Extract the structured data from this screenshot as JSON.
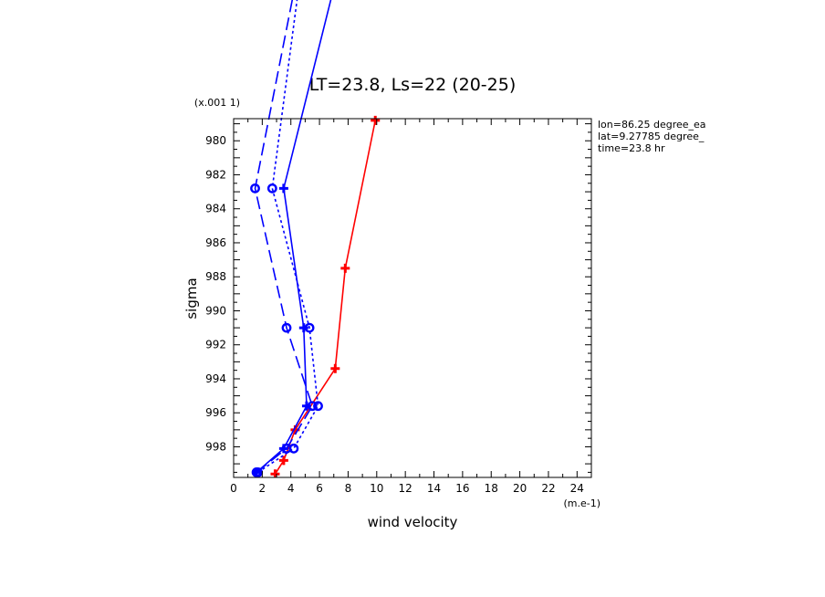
{
  "chart_data": {
    "type": "line",
    "title": "LT=23.8, Ls=22 (20-25)",
    "xlabel": "wind velocity",
    "ylabel": "sigma",
    "x_scale_note": "(m.e-1)",
    "y_scale_note": "(x.001 1)",
    "annotations": [
      "lon=86.25 degree_ea",
      "lat=9.27785 degree_",
      "time=23.8 hr"
    ],
    "xlim": [
      0,
      25
    ],
    "ylim": [
      999.8,
      978.7
    ],
    "x_ticks": [
      "0",
      "2",
      "4",
      "6",
      "8",
      "10",
      "12",
      "14",
      "16",
      "18",
      "20",
      "22",
      "24"
    ],
    "y_ticks": [
      "980",
      "982",
      "984",
      "986",
      "988",
      "990",
      "992",
      "994",
      "996",
      "998"
    ],
    "grid": false,
    "series": [
      {
        "color": "#ff0000",
        "line_style": "solid",
        "marker": "plus",
        "x": [
          2.9,
          3.5,
          4.3,
          7.1,
          7.8,
          9.9
        ],
        "y": [
          999.6,
          998.8,
          997.0,
          993.4,
          987.5,
          978.8
        ]
      },
      {
        "color": "#0000ff",
        "line_style": "solid",
        "marker": "plus",
        "x": [
          1.6,
          3.5,
          5.1,
          4.9,
          3.5,
          7.3
        ],
        "y": [
          999.5,
          998.1,
          995.6,
          991.0,
          982.8,
          970.0
        ]
      },
      {
        "color": "#0000ff",
        "line_style": "dashed",
        "marker": "circle",
        "x": [
          1.6,
          3.7,
          5.5,
          3.7,
          1.5,
          4.5
        ],
        "y": [
          999.5,
          998.1,
          995.6,
          991.0,
          982.8,
          970.0
        ]
      },
      {
        "color": "#0000ff",
        "line_style": "dotted",
        "marker": "circle",
        "x": [
          1.7,
          4.2,
          5.9,
          5.3,
          2.7,
          4.7
        ],
        "y": [
          999.5,
          998.1,
          995.6,
          991.0,
          982.8,
          970.0
        ]
      }
    ]
  }
}
